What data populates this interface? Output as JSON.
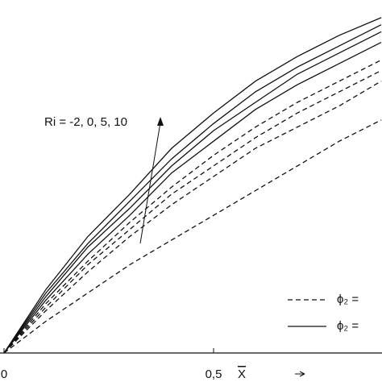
{
  "chart_data": {
    "type": "line",
    "x": [
      0,
      0.1,
      0.2,
      0.3,
      0.4,
      0.5,
      0.6,
      0.7,
      0.8,
      0.9
    ],
    "xlim": [
      0,
      0.9
    ],
    "ylim": [
      0,
      1
    ],
    "xticks": [
      0,
      {
        "value": 0.5,
        "label": "0,5"
      }
    ],
    "x_label": "X",
    "annotation": "Ri = -2, 0, 5, 10",
    "color": "#111111",
    "series": [
      {
        "style": "solid",
        "values": [
          0,
          0.18,
          0.33,
          0.45,
          0.58,
          0.68,
          0.77,
          0.84,
          0.9,
          0.95
        ]
      },
      {
        "style": "solid",
        "values": [
          0,
          0.17,
          0.31,
          0.43,
          0.55,
          0.65,
          0.74,
          0.81,
          0.87,
          0.93
        ]
      },
      {
        "style": "solid",
        "values": [
          0,
          0.16,
          0.3,
          0.41,
          0.53,
          0.63,
          0.71,
          0.79,
          0.85,
          0.91
        ]
      },
      {
        "style": "solid",
        "values": [
          0,
          0.15,
          0.28,
          0.39,
          0.51,
          0.6,
          0.69,
          0.76,
          0.82,
          0.88
        ]
      },
      {
        "style": "dashed",
        "values": [
          0,
          0.14,
          0.26,
          0.37,
          0.47,
          0.56,
          0.64,
          0.71,
          0.77,
          0.83
        ]
      },
      {
        "style": "dashed",
        "values": [
          0,
          0.13,
          0.25,
          0.35,
          0.45,
          0.53,
          0.61,
          0.68,
          0.74,
          0.8
        ]
      },
      {
        "style": "dashed",
        "values": [
          0,
          0.12,
          0.23,
          0.33,
          0.42,
          0.5,
          0.58,
          0.64,
          0.7,
          0.77
        ]
      },
      {
        "style": "dashed",
        "values": [
          0,
          0.09,
          0.17,
          0.25,
          0.32,
          0.39,
          0.46,
          0.53,
          0.6,
          0.66
        ]
      }
    ],
    "legend": [
      {
        "style": "dashed",
        "label": "ϕ₂ ="
      },
      {
        "style": "solid",
        "label": "ϕ₂ ="
      }
    ]
  }
}
